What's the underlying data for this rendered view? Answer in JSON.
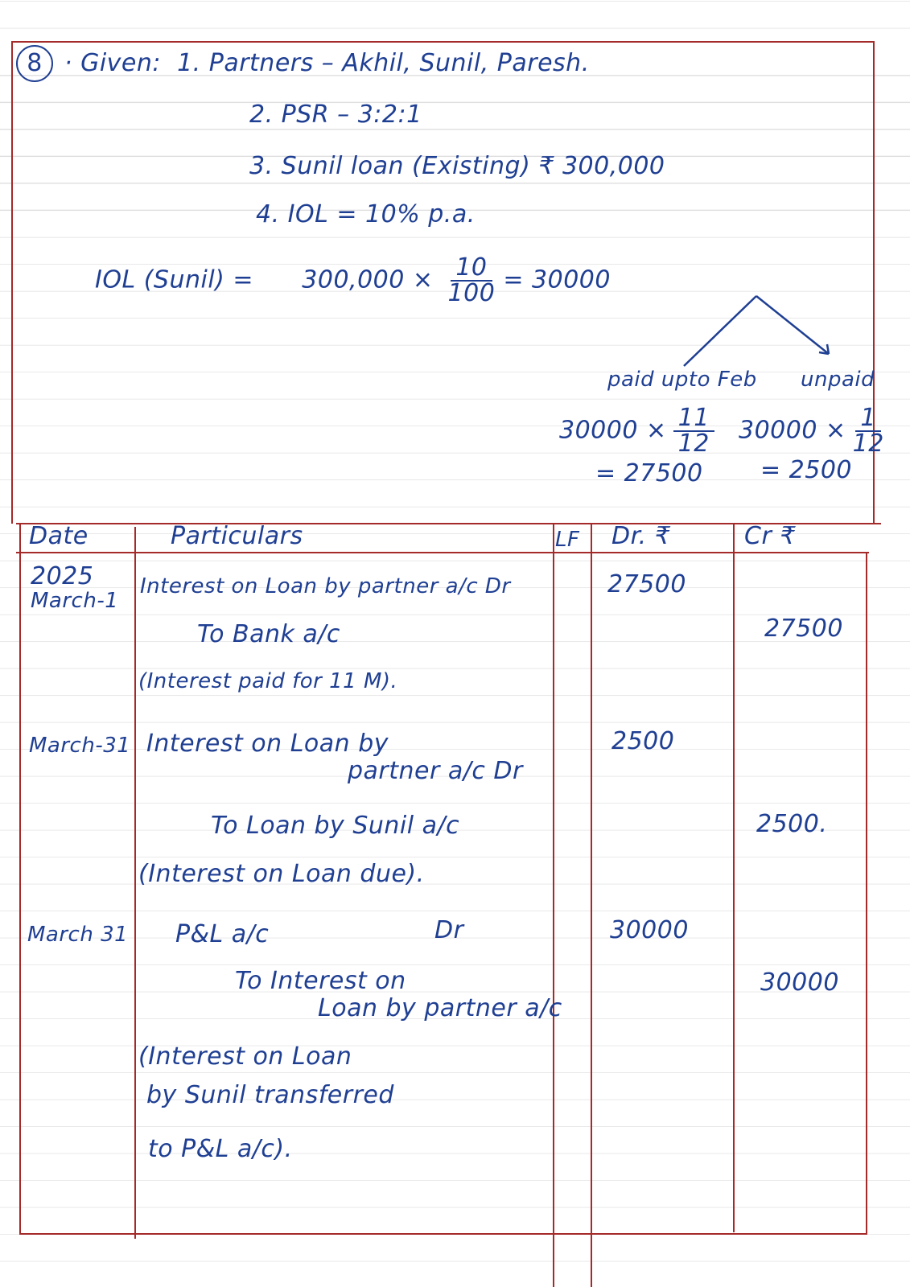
{
  "given": {
    "number": "8",
    "label": "· Given:",
    "items": [
      "1. Partners – Akhil, Sunil, Paresh.",
      "2. PSR – 3:2:1",
      "3. Sunil loan (Existing) ₹ 300,000",
      "4. IOL = 10% p.a."
    ]
  },
  "calc": {
    "lhs": "IOL (Sunil)  =",
    "principal": "300,000 ×",
    "num": "10",
    "den": "100",
    "result": "= 30000",
    "paid_label": "paid upto Feb",
    "unpaid_label": "unpaid",
    "paid_expr": "30000 ×",
    "paid_num": "11",
    "paid_den": "12",
    "paid_result": "= 27500",
    "unpaid_expr": "30000 ×",
    "unpaid_num": "1",
    "unpaid_den": "12",
    "unpaid_result": "= 2500"
  },
  "journal": {
    "headers": {
      "date": "Date",
      "particulars": "Particulars",
      "lf": "LF",
      "dr": "Dr. ₹",
      "cr": "Cr ₹"
    },
    "entries": [
      {
        "date1": "2025",
        "date2": "March-1",
        "debit": "Interest on Loan by partner a/c Dr",
        "credit": "To Bank a/c",
        "narration": [
          "(Interest paid for 11 M)."
        ],
        "dr": "27500",
        "cr": "27500"
      },
      {
        "date1": "March-31",
        "debit1": "Interest on Loan by",
        "debit2": "partner a/c Dr",
        "credit": "To Loan by Sunil a/c",
        "narration": [
          "(Interest on Loan due)."
        ],
        "dr": "2500",
        "cr": "2500."
      },
      {
        "date1": "March 31",
        "debit": "P&L a/c",
        "dr_mark": "Dr",
        "credit1": "To Interest on",
        "credit2": "Loan by partner a/c",
        "narration": [
          "(Interest on Loan",
          "by Sunil transferred",
          "to P&L a/c)."
        ],
        "dr": "30000",
        "cr": "30000"
      }
    ]
  },
  "colors": {
    "ink": "#1f3f93",
    "rule": "#a52a2a",
    "paper_line": "#dcdcdc"
  }
}
